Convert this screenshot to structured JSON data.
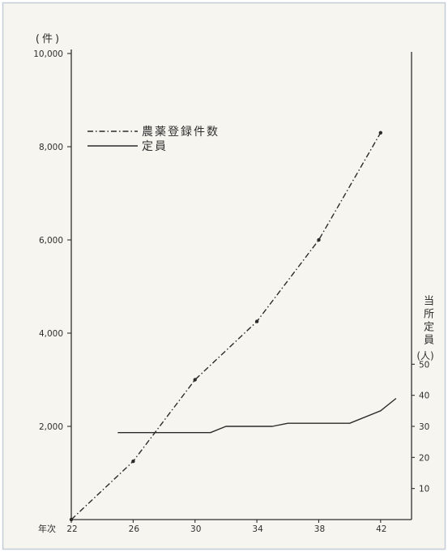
{
  "chart_data": {
    "type": "line",
    "xlabel": "年次",
    "ylabel": "(件)",
    "y2label": "当所定員",
    "y2unit": "(人)",
    "xlim": [
      22,
      44
    ],
    "ylim": [
      0,
      10000
    ],
    "y2lim": [
      0,
      150
    ],
    "xticks": [
      22,
      26,
      30,
      34,
      38,
      42
    ],
    "yticks": [
      2000,
      4000,
      6000,
      8000,
      10000
    ],
    "ytick_labels": [
      "2,000",
      "4,000",
      "6,000",
      "8,000",
      "10,000"
    ],
    "y2ticks": [
      10,
      20,
      30,
      40,
      50
    ],
    "grid": false,
    "legend": "upper-left",
    "series": [
      {
        "name": "農薬登録件数",
        "axis": "left",
        "line_style": "dash-dot",
        "markers": true,
        "x": [
          22,
          26,
          30,
          34,
          38,
          42
        ],
        "values": [
          0,
          1250,
          3000,
          4250,
          6000,
          8300
        ]
      },
      {
        "name": "定員",
        "axis": "right",
        "line_style": "solid",
        "markers": false,
        "x": [
          25,
          31,
          32,
          35,
          36,
          40,
          42,
          43
        ],
        "values": [
          28,
          28,
          30,
          30,
          31,
          31,
          35,
          39
        ]
      }
    ]
  },
  "colors": {
    "paper": "#f7f5ef",
    "frame": "#c3cdd7",
    "ink": "#2b2b2b"
  }
}
